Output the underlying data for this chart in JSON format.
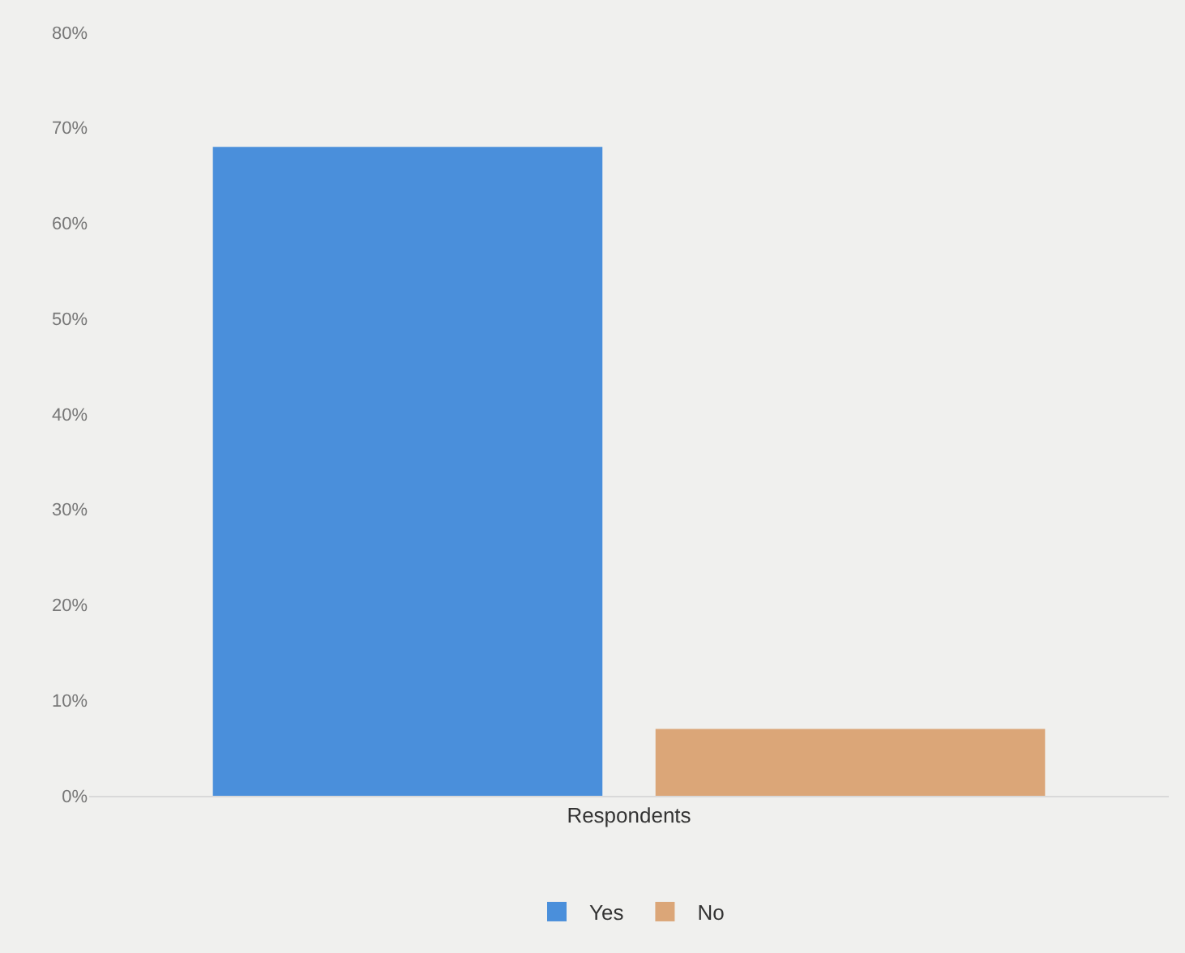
{
  "chart_data": {
    "type": "bar",
    "categories": [
      "Respondents"
    ],
    "series": [
      {
        "name": "Yes",
        "color": "#4a8fdb",
        "values": [
          68
        ]
      },
      {
        "name": "No",
        "color": "#dba678",
        "values": [
          7
        ]
      }
    ],
    "ylim": [
      0,
      80
    ],
    "yticks": [
      {
        "value": 0,
        "label": "0%"
      },
      {
        "value": 10,
        "label": "10%"
      },
      {
        "value": 20,
        "label": "20%"
      },
      {
        "value": 30,
        "label": "30%"
      },
      {
        "value": 40,
        "label": "40%"
      },
      {
        "value": 50,
        "label": "50%"
      },
      {
        "value": 60,
        "label": "60%"
      },
      {
        "value": 70,
        "label": "70%"
      },
      {
        "value": 80,
        "label": "80%"
      }
    ],
    "grid": false,
    "legend": "bottom"
  }
}
